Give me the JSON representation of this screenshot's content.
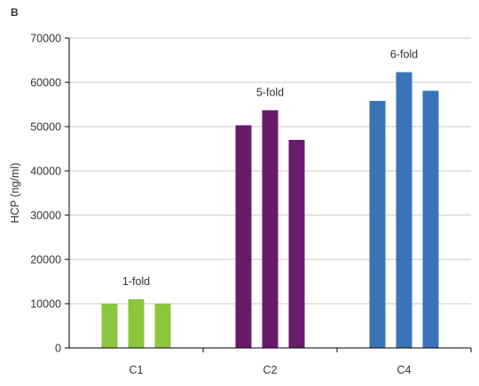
{
  "panel_label": "B",
  "chart_data": {
    "type": "bar",
    "title": "",
    "xlabel": "",
    "ylabel": "HCP (ng/ml)",
    "ylim": [
      0,
      70000
    ],
    "yticks": [
      "0",
      "10000",
      "20000",
      "30000",
      "40000",
      "50000",
      "60000",
      "70000"
    ],
    "grid": true,
    "categories": [
      "C1",
      "C2",
      "C4"
    ],
    "groups": [
      {
        "category": "C1",
        "color": "#8cc63f",
        "values": [
          10000,
          11000,
          10000
        ],
        "annotation": "1-fold"
      },
      {
        "category": "C2",
        "color": "#6b1a6b",
        "values": [
          50300,
          53700,
          47000
        ],
        "annotation": "5-fold"
      },
      {
        "category": "C4",
        "color": "#3a74b8",
        "values": [
          55800,
          62300,
          58100
        ],
        "annotation": "6-fold"
      }
    ]
  }
}
